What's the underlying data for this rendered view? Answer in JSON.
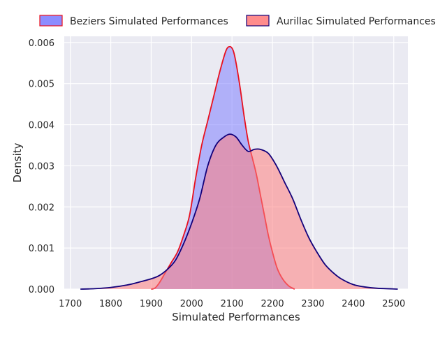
{
  "chart_data": {
    "type": "area",
    "title": "",
    "xlabel": "Simulated Performances",
    "ylabel": "Density",
    "xlim": [
      1685,
      2535
    ],
    "ylim": [
      0,
      0.00615
    ],
    "x_ticks": [
      "1700",
      "1800",
      "1900",
      "2000",
      "2100",
      "2200",
      "2300",
      "2400",
      "2500"
    ],
    "y_ticks": [
      "0.000",
      "0.001",
      "0.002",
      "0.003",
      "0.004",
      "0.005",
      "0.006"
    ],
    "grid": true,
    "legend_position": "top",
    "series": [
      {
        "name": "Beziers Simulated Performances",
        "fill_color": "#8080ff",
        "fill_opacity": 0.55,
        "line_color": "#e8101e",
        "points": [
          [
            1900,
            0.0
          ],
          [
            1910,
            3e-05
          ],
          [
            1920,
            0.00015
          ],
          [
            1935,
            0.0004
          ],
          [
            1950,
            0.00065
          ],
          [
            1965,
            0.0009
          ],
          [
            1980,
            0.0013
          ],
          [
            1995,
            0.0018
          ],
          [
            2010,
            0.0027
          ],
          [
            2025,
            0.0035
          ],
          [
            2040,
            0.0041
          ],
          [
            2055,
            0.0047
          ],
          [
            2070,
            0.0053
          ],
          [
            2085,
            0.0058
          ],
          [
            2095,
            0.0059
          ],
          [
            2103,
            0.0058
          ],
          [
            2110,
            0.0055
          ],
          [
            2120,
            0.0049
          ],
          [
            2130,
            0.0042
          ],
          [
            2140,
            0.0036
          ],
          [
            2150,
            0.0032
          ],
          [
            2160,
            0.0028
          ],
          [
            2170,
            0.0023
          ],
          [
            2180,
            0.0018
          ],
          [
            2190,
            0.0013
          ],
          [
            2200,
            0.0009
          ],
          [
            2212,
            0.0005
          ],
          [
            2225,
            0.00025
          ],
          [
            2240,
            8e-05
          ],
          [
            2255,
            0.0
          ]
        ]
      },
      {
        "name": "Aurillac Simulated Performances",
        "fill_color": "#ff8080",
        "fill_opacity": 0.55,
        "line_color": "#12007a",
        "points": [
          [
            1725,
            0.0
          ],
          [
            1760,
            1e-05
          ],
          [
            1800,
            4e-05
          ],
          [
            1840,
            0.0001
          ],
          [
            1870,
            0.00017
          ],
          [
            1900,
            0.00025
          ],
          [
            1920,
            0.00033
          ],
          [
            1940,
            0.00048
          ],
          [
            1960,
            0.0007
          ],
          [
            1980,
            0.0011
          ],
          [
            2000,
            0.0016
          ],
          [
            2020,
            0.0022
          ],
          [
            2040,
            0.003
          ],
          [
            2060,
            0.0035
          ],
          [
            2080,
            0.0037
          ],
          [
            2095,
            0.00377
          ],
          [
            2110,
            0.0037
          ],
          [
            2125,
            0.0035
          ],
          [
            2140,
            0.00335
          ],
          [
            2155,
            0.0034
          ],
          [
            2170,
            0.0034
          ],
          [
            2190,
            0.0033
          ],
          [
            2210,
            0.003
          ],
          [
            2230,
            0.0026
          ],
          [
            2250,
            0.0022
          ],
          [
            2270,
            0.0017
          ],
          [
            2290,
            0.00125
          ],
          [
            2310,
            0.0009
          ],
          [
            2330,
            0.0006
          ],
          [
            2350,
            0.0004
          ],
          [
            2370,
            0.00025
          ],
          [
            2400,
            0.00011
          ],
          [
            2430,
            5e-05
          ],
          [
            2460,
            2e-05
          ],
          [
            2510,
            0.0
          ]
        ]
      }
    ]
  }
}
